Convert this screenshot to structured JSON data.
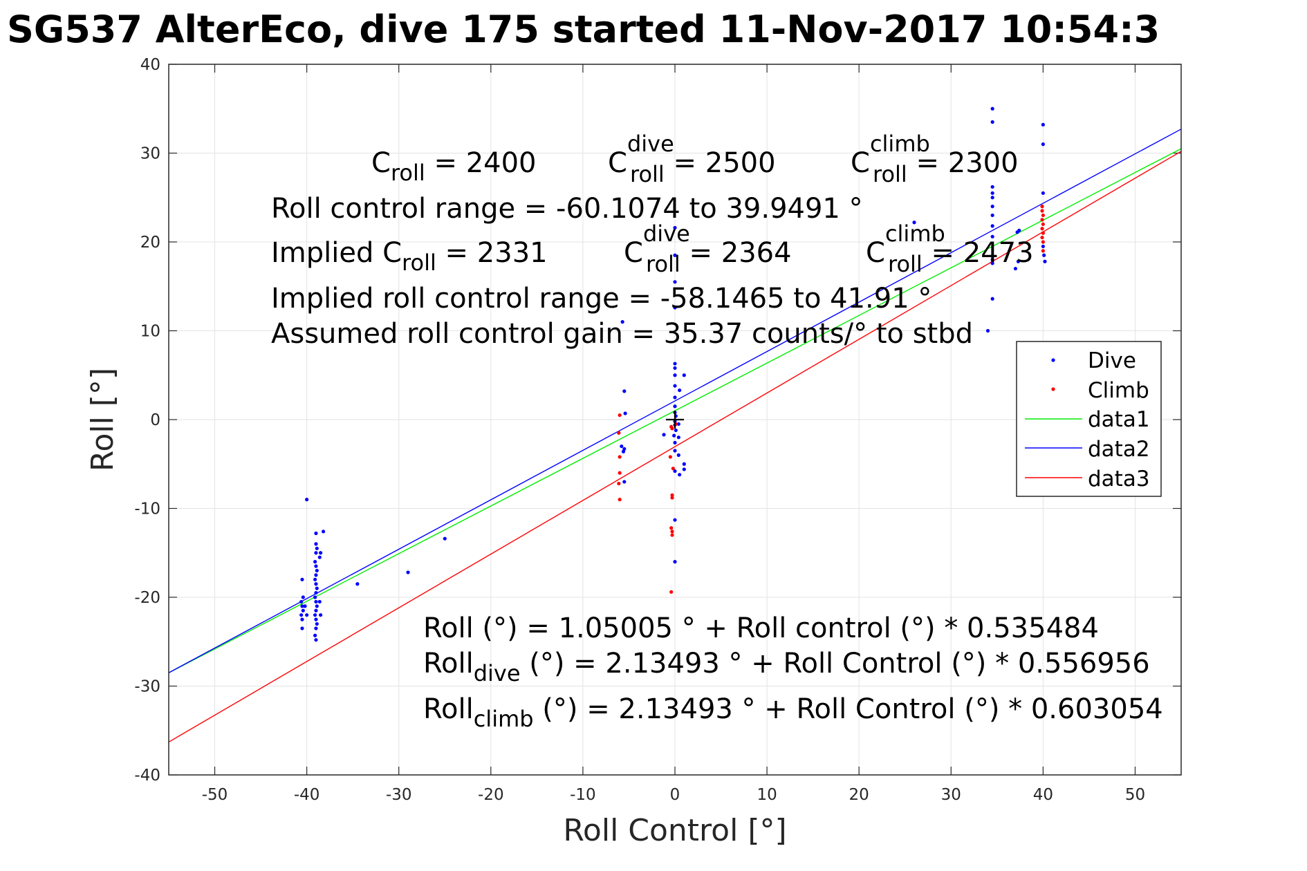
{
  "chart_data": {
    "type": "scatter",
    "title": "SG537 AlterEco, dive 175 started 11-Nov-2017 10:54:3",
    "xlabel": "Roll Control [°]",
    "ylabel": "Roll [°]",
    "xlim": [
      -55,
      55
    ],
    "ylim": [
      -40,
      40
    ],
    "xticks": [
      -50,
      -40,
      -30,
      -20,
      -10,
      0,
      10,
      20,
      30,
      40,
      50
    ],
    "yticks": [
      -40,
      -30,
      -20,
      -10,
      0,
      10,
      20,
      30,
      40
    ],
    "x_tick_labels": [
      "-50",
      "-40",
      "-30",
      "-20",
      "-10",
      "0",
      "10",
      "20",
      "30",
      "40",
      "50"
    ],
    "y_tick_labels": [
      "-40",
      "-30",
      "-20",
      "-10",
      "0",
      "10",
      "20",
      "30",
      "40"
    ],
    "grid": true,
    "legend_position": "right",
    "marker": {
      "x": 0,
      "y": 0,
      "color": "#000000"
    },
    "series": [
      {
        "name": "Dive",
        "kind": "points",
        "color": "#0000ff",
        "points": [
          [
            -40.5,
            -23.5
          ],
          [
            -40.5,
            -22.5
          ],
          [
            -40.6,
            -22.0
          ],
          [
            -40.4,
            -21.5
          ],
          [
            -40.5,
            -21.0
          ],
          [
            -40.6,
            -20.5
          ],
          [
            -40.4,
            -20.0
          ],
          [
            -40.5,
            -18.0
          ],
          [
            -40.0,
            -9.0
          ],
          [
            -40.2,
            -21.0
          ],
          [
            -40.0,
            -22.0
          ],
          [
            -39.0,
            -24.8
          ],
          [
            -39.1,
            -24.3
          ],
          [
            -39.0,
            -23.5
          ],
          [
            -38.9,
            -23.0
          ],
          [
            -39.0,
            -22.5
          ],
          [
            -39.1,
            -22.0
          ],
          [
            -39.0,
            -21.5
          ],
          [
            -38.9,
            -21.0
          ],
          [
            -39.0,
            -20.5
          ],
          [
            -39.1,
            -20.0
          ],
          [
            -39.0,
            -19.5
          ],
          [
            -38.9,
            -19.0
          ],
          [
            -39.0,
            -18.5
          ],
          [
            -39.1,
            -18.0
          ],
          [
            -39.0,
            -17.5
          ],
          [
            -38.9,
            -17.0
          ],
          [
            -39.0,
            -16.5
          ],
          [
            -39.1,
            -16.0
          ],
          [
            -39.0,
            -15.0
          ],
          [
            -38.9,
            -14.5
          ],
          [
            -39.0,
            -14.0
          ],
          [
            -39.0,
            -12.8
          ],
          [
            -38.6,
            -15.5
          ],
          [
            -38.5,
            -15.0
          ],
          [
            -38.6,
            -20.5
          ],
          [
            -38.5,
            -22.0
          ],
          [
            -38.2,
            -12.6
          ],
          [
            -34.5,
            -18.5
          ],
          [
            -29.0,
            -17.2
          ],
          [
            -25.0,
            -13.4
          ],
          [
            -5.5,
            3.2
          ],
          [
            -5.4,
            0.7
          ],
          [
            -5.8,
            -3.0
          ],
          [
            -5.5,
            -3.3
          ],
          [
            -5.6,
            -3.6
          ],
          [
            -5.5,
            -7.0
          ],
          [
            -5.7,
            11.0
          ],
          [
            0.0,
            21.6
          ],
          [
            0.0,
            18.5
          ],
          [
            0.0,
            15.5
          ],
          [
            0.0,
            12.6
          ],
          [
            0.0,
            6.3
          ],
          [
            0.0,
            5.8
          ],
          [
            0.0,
            5.0
          ],
          [
            0.0,
            3.8
          ],
          [
            0.0,
            2.5
          ],
          [
            0.0,
            1.5
          ],
          [
            0.0,
            0.8
          ],
          [
            0.1,
            0.4
          ],
          [
            0.0,
            -0.2
          ],
          [
            0.0,
            -0.6
          ],
          [
            0.1,
            -1.2
          ],
          [
            -0.1,
            -1.8
          ],
          [
            0.0,
            -2.6
          ],
          [
            0.0,
            -3.5
          ],
          [
            0.0,
            -5.8
          ],
          [
            0.0,
            -11.3
          ],
          [
            0.0,
            -16.0
          ],
          [
            0.4,
            -2.0
          ],
          [
            0.4,
            -0.5
          ],
          [
            0.4,
            -4.0
          ],
          [
            0.5,
            -6.2
          ],
          [
            1.0,
            -5.0
          ],
          [
            1.0,
            -5.6
          ],
          [
            1.0,
            5.0
          ],
          [
            0.5,
            3.3
          ],
          [
            -1.2,
            -1.7
          ],
          [
            26.0,
            22.2
          ],
          [
            34.5,
            35.0
          ],
          [
            34.5,
            33.5
          ],
          [
            34.5,
            26.2
          ],
          [
            34.5,
            25.5
          ],
          [
            34.5,
            25.0
          ],
          [
            34.5,
            24.0
          ],
          [
            34.5,
            23.0
          ],
          [
            34.5,
            21.8
          ],
          [
            34.5,
            20.6
          ],
          [
            34.5,
            18.0
          ],
          [
            34.5,
            17.6
          ],
          [
            34.5,
            13.6
          ],
          [
            34.0,
            10.0
          ],
          [
            37.0,
            17.0
          ],
          [
            37.3,
            17.8
          ],
          [
            37.2,
            21.1
          ],
          [
            37.4,
            21.3
          ],
          [
            40.0,
            33.2
          ],
          [
            40.0,
            31.0
          ],
          [
            40.0,
            25.5
          ],
          [
            40.2,
            17.8
          ],
          [
            40.0,
            19.5
          ],
          [
            40.1,
            18.5
          ]
        ]
      },
      {
        "name": "Climb",
        "kind": "points",
        "color": "#ff0000",
        "points": [
          [
            -6.0,
            0.5
          ],
          [
            -6.1,
            -1.5
          ],
          [
            -6.0,
            -4.2
          ],
          [
            -6.0,
            -6.0
          ],
          [
            -6.1,
            -7.2
          ],
          [
            -6.0,
            -9.0
          ],
          [
            -0.4,
            -0.8
          ],
          [
            -0.5,
            -4.2
          ],
          [
            -0.2,
            -5.5
          ],
          [
            -0.3,
            -8.5
          ],
          [
            -0.3,
            -8.8
          ],
          [
            -0.4,
            -12.2
          ],
          [
            -0.3,
            -12.6
          ],
          [
            -0.3,
            -13.0
          ],
          [
            -0.4,
            -19.4
          ],
          [
            0.1,
            -0.5
          ],
          [
            -0.3,
            -1.0
          ],
          [
            39.9,
            24.0
          ],
          [
            39.9,
            23.5
          ],
          [
            40.0,
            23.0
          ],
          [
            39.9,
            22.5
          ],
          [
            40.0,
            22.0
          ],
          [
            39.9,
            21.5
          ],
          [
            40.0,
            21.0
          ],
          [
            39.9,
            20.5
          ],
          [
            40.0,
            20.0
          ],
          [
            40.0,
            19.0
          ]
        ]
      },
      {
        "name": "data1",
        "kind": "line",
        "color": "#00ee00",
        "x": [
          -55,
          55
        ],
        "y": [
          -28.5,
          30.5
        ]
      },
      {
        "name": "data2",
        "kind": "line",
        "color": "#0000ff",
        "x": [
          -55,
          55
        ],
        "y": [
          -28.5,
          32.7
        ]
      },
      {
        "name": "data3",
        "kind": "line",
        "color": "#ff0000",
        "x": [
          -55,
          55
        ],
        "y": [
          -36.3,
          30.2
        ]
      }
    ],
    "annotations": {
      "c_roll": {
        "base": "C",
        "sub": "roll",
        "value": " = 2400"
      },
      "c_roll_dive": {
        "base": "C",
        "sup": "dive",
        "sub": "roll",
        "value": " = 2500"
      },
      "c_roll_climb": {
        "base": "C",
        "sup": "climb",
        "sub": "roll",
        "value": " = 2300"
      },
      "control_range": "Roll control range = -60.1074 to 39.9491 °",
      "implied": {
        "prefix": "Implied C",
        "sub": "roll",
        "value": " = 2331"
      },
      "implied_dive": {
        "base": "C",
        "sup": "dive",
        "sub": "roll",
        "value": " = 2364"
      },
      "implied_climb": {
        "base": "C",
        "sup": "climb",
        "sub": "roll",
        "value": " = 2473"
      },
      "implied_range": "Implied roll control range = -58.1465 to 41.91 °",
      "gain": "Assumed roll control gain = 35.37 counts/° to stbd",
      "fit": "Roll (°) = 1.05005 ° + Roll control (°) * 0.535484",
      "fit_dive": {
        "base": "Roll",
        "sub": "dive",
        "value": " (°) = 2.13493 ° + Roll Control (°) * 0.556956"
      },
      "fit_climb": {
        "base": "Roll",
        "sub": "climb",
        "value": " (°) = 2.13493 ° + Roll Control (°) * 0.603054"
      }
    }
  }
}
